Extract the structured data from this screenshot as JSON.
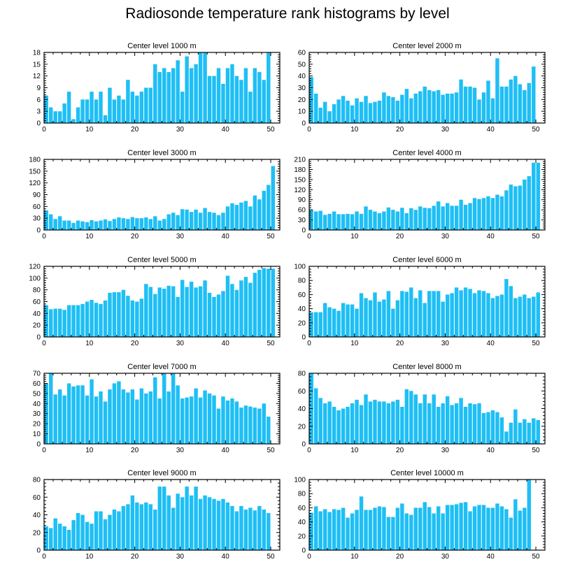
{
  "title": "Radiosonde temperature rank histograms by level",
  "colors": {
    "bar": "#1EBFF5",
    "axis": "#000000",
    "background": "#ffffff"
  },
  "chart_data": [
    {
      "type": "bar",
      "title": "Center level 1000 m",
      "x": [
        0,
        1,
        2,
        3,
        4,
        5,
        6,
        7,
        8,
        9,
        10,
        11,
        12,
        13,
        14,
        15,
        16,
        17,
        18,
        19,
        20,
        21,
        22,
        23,
        24,
        25,
        26,
        27,
        28,
        29,
        30,
        31,
        32,
        33,
        34,
        35,
        36,
        37,
        38,
        39,
        40,
        41,
        42,
        43,
        44,
        45,
        46,
        47,
        48,
        49,
        50,
        51
      ],
      "values": [
        7,
        4,
        3,
        3,
        5,
        8,
        1,
        4,
        6,
        6,
        8,
        6,
        8,
        2,
        9,
        6,
        7,
        6,
        11,
        8,
        7,
        8,
        9,
        9,
        15,
        13,
        14,
        13,
        14,
        16,
        8,
        17,
        14,
        15,
        18,
        18,
        12,
        12,
        14,
        10,
        14,
        15,
        12,
        11,
        14,
        8,
        14,
        13,
        11,
        18,
        0,
        0
      ],
      "xlim": [
        0,
        52
      ],
      "ylim": [
        0,
        18
      ],
      "xticks": [
        0,
        10,
        20,
        30,
        40,
        50
      ],
      "yticks": [
        0,
        3,
        6,
        9,
        12,
        15,
        18
      ]
    },
    {
      "type": "bar",
      "title": "Center level 2000 m",
      "x": [
        0,
        1,
        2,
        3,
        4,
        5,
        6,
        7,
        8,
        9,
        10,
        11,
        12,
        13,
        14,
        15,
        16,
        17,
        18,
        19,
        20,
        21,
        22,
        23,
        24,
        25,
        26,
        27,
        28,
        29,
        30,
        31,
        32,
        33,
        34,
        35,
        36,
        37,
        38,
        39,
        40,
        41,
        42,
        43,
        44,
        45,
        46,
        47,
        48,
        49,
        50,
        51
      ],
      "values": [
        39,
        25,
        13,
        18,
        10,
        16,
        20,
        23,
        19,
        15,
        21,
        18,
        23,
        17,
        18,
        19,
        26,
        23,
        22,
        19,
        24,
        29,
        21,
        25,
        27,
        31,
        28,
        27,
        28,
        24,
        25,
        25,
        26,
        37,
        31,
        31,
        30,
        20,
        26,
        36,
        21,
        55,
        31,
        31,
        37,
        40,
        33,
        28,
        34,
        48,
        0,
        0
      ],
      "xlim": [
        0,
        52
      ],
      "ylim": [
        0,
        60
      ],
      "xticks": [
        0,
        10,
        20,
        30,
        40,
        50
      ],
      "yticks": [
        0,
        10,
        20,
        30,
        40,
        50,
        60
      ]
    },
    {
      "type": "bar",
      "title": "Center level 3000 m",
      "x": [
        0,
        1,
        2,
        3,
        4,
        5,
        6,
        7,
        8,
        9,
        10,
        11,
        12,
        13,
        14,
        15,
        16,
        17,
        18,
        19,
        20,
        21,
        22,
        23,
        24,
        25,
        26,
        27,
        28,
        29,
        30,
        31,
        32,
        33,
        34,
        35,
        36,
        37,
        38,
        39,
        40,
        41,
        42,
        43,
        44,
        45,
        46,
        47,
        48,
        49,
        50,
        51
      ],
      "values": [
        50,
        40,
        28,
        35,
        24,
        24,
        18,
        24,
        22,
        20,
        25,
        22,
        24,
        27,
        23,
        28,
        32,
        30,
        28,
        33,
        30,
        30,
        32,
        28,
        35,
        24,
        28,
        40,
        44,
        38,
        53,
        52,
        46,
        52,
        44,
        56,
        46,
        44,
        38,
        44,
        60,
        68,
        64,
        70,
        74,
        60,
        88,
        78,
        100,
        115,
        163,
        0
      ],
      "xlim": [
        0,
        52
      ],
      "ylim": [
        0,
        180
      ],
      "xticks": [
        0,
        10,
        20,
        30,
        40,
        50
      ],
      "yticks": [
        0,
        30,
        60,
        90,
        120,
        150,
        180
      ]
    },
    {
      "type": "bar",
      "title": "Center level 4000 m",
      "x": [
        0,
        1,
        2,
        3,
        4,
        5,
        6,
        7,
        8,
        9,
        10,
        11,
        12,
        13,
        14,
        15,
        16,
        17,
        18,
        19,
        20,
        21,
        22,
        23,
        24,
        25,
        26,
        27,
        28,
        29,
        30,
        31,
        32,
        33,
        34,
        35,
        36,
        37,
        38,
        39,
        40,
        41,
        42,
        43,
        44,
        45,
        46,
        47,
        48,
        49,
        50,
        51
      ],
      "values": [
        60,
        55,
        57,
        45,
        48,
        55,
        47,
        47,
        48,
        47,
        55,
        48,
        70,
        60,
        55,
        50,
        55,
        67,
        60,
        55,
        66,
        50,
        65,
        60,
        70,
        66,
        65,
        72,
        85,
        70,
        80,
        72,
        72,
        90,
        75,
        80,
        95,
        92,
        95,
        100,
        95,
        105,
        100,
        118,
        135,
        130,
        132,
        150,
        160,
        200,
        200,
        0
      ],
      "xlim": [
        0,
        52
      ],
      "ylim": [
        0,
        210
      ],
      "xticks": [
        0,
        10,
        20,
        30,
        40,
        50
      ],
      "yticks": [
        0,
        30,
        60,
        90,
        120,
        150,
        180,
        210
      ]
    },
    {
      "type": "bar",
      "title": "Center level 5000 m",
      "x": [
        0,
        1,
        2,
        3,
        4,
        5,
        6,
        7,
        8,
        9,
        10,
        11,
        12,
        13,
        14,
        15,
        16,
        17,
        18,
        19,
        20,
        21,
        22,
        23,
        24,
        25,
        26,
        27,
        28,
        29,
        30,
        31,
        32,
        33,
        34,
        35,
        36,
        37,
        38,
        39,
        40,
        41,
        42,
        43,
        44,
        45,
        46,
        47,
        48,
        49,
        50,
        51
      ],
      "values": [
        54,
        47,
        48,
        48,
        46,
        54,
        54,
        54,
        56,
        60,
        63,
        58,
        56,
        62,
        75,
        76,
        76,
        80,
        70,
        62,
        60,
        65,
        90,
        85,
        73,
        84,
        82,
        87,
        86,
        68,
        97,
        85,
        94,
        84,
        86,
        96,
        75,
        68,
        72,
        78,
        104,
        90,
        80,
        96,
        102,
        92,
        109,
        114,
        117,
        116,
        116,
        0
      ],
      "xlim": [
        0,
        52
      ],
      "ylim": [
        0,
        120
      ],
      "xticks": [
        0,
        10,
        20,
        30,
        40,
        50
      ],
      "yticks": [
        0,
        20,
        40,
        60,
        80,
        100,
        120
      ]
    },
    {
      "type": "bar",
      "title": "Center level 6000 m",
      "x": [
        0,
        1,
        2,
        3,
        4,
        5,
        6,
        7,
        8,
        9,
        10,
        11,
        12,
        13,
        14,
        15,
        16,
        17,
        18,
        19,
        20,
        21,
        22,
        23,
        24,
        25,
        26,
        27,
        28,
        29,
        30,
        31,
        32,
        33,
        34,
        35,
        36,
        37,
        38,
        39,
        40,
        41,
        42,
        43,
        44,
        45,
        46,
        47,
        48,
        49,
        50,
        51
      ],
      "values": [
        35,
        35,
        35,
        48,
        42,
        40,
        37,
        48,
        46,
        46,
        40,
        62,
        55,
        52,
        63,
        50,
        53,
        65,
        40,
        52,
        65,
        64,
        70,
        55,
        66,
        48,
        65,
        65,
        65,
        50,
        60,
        62,
        70,
        66,
        70,
        68,
        62,
        66,
        65,
        62,
        55,
        58,
        60,
        82,
        72,
        55,
        57,
        60,
        55,
        57,
        63,
        0
      ],
      "xlim": [
        0,
        52
      ],
      "ylim": [
        0,
        100
      ],
      "xticks": [
        0,
        10,
        20,
        30,
        40,
        50
      ],
      "yticks": [
        0,
        20,
        40,
        60,
        80,
        100
      ]
    },
    {
      "type": "bar",
      "title": "Center level 7000 m",
      "x": [
        0,
        1,
        2,
        3,
        4,
        5,
        6,
        7,
        8,
        9,
        10,
        11,
        12,
        13,
        14,
        15,
        16,
        17,
        18,
        19,
        20,
        21,
        22,
        23,
        24,
        25,
        26,
        27,
        28,
        29,
        30,
        31,
        32,
        33,
        34,
        35,
        36,
        37,
        38,
        39,
        40,
        41,
        42,
        43,
        44,
        45,
        46,
        47,
        48,
        49,
        50,
        51
      ],
      "values": [
        60,
        70,
        49,
        54,
        48,
        60,
        57,
        58,
        58,
        48,
        64,
        47,
        52,
        42,
        54,
        60,
        62,
        54,
        51,
        54,
        44,
        55,
        50,
        52,
        66,
        45,
        70,
        52,
        70,
        58,
        45,
        46,
        47,
        55,
        46,
        53,
        50,
        48,
        35,
        47,
        43,
        45,
        42,
        36,
        38,
        37,
        36,
        35,
        40,
        27,
        0,
        0
      ],
      "xlim": [
        0,
        52
      ],
      "ylim": [
        0,
        70
      ],
      "xticks": [
        0,
        10,
        20,
        30,
        40,
        50
      ],
      "yticks": [
        0,
        10,
        20,
        30,
        40,
        50,
        60,
        70
      ]
    },
    {
      "type": "bar",
      "title": "Center level 8000 m",
      "x": [
        0,
        1,
        2,
        3,
        4,
        5,
        6,
        7,
        8,
        9,
        10,
        11,
        12,
        13,
        14,
        15,
        16,
        17,
        18,
        19,
        20,
        21,
        22,
        23,
        24,
        25,
        26,
        27,
        28,
        29,
        30,
        31,
        32,
        33,
        34,
        35,
        36,
        37,
        38,
        39,
        40,
        41,
        42,
        43,
        44,
        45,
        46,
        47,
        48,
        49,
        50,
        51
      ],
      "values": [
        80,
        63,
        52,
        46,
        48,
        42,
        38,
        40,
        42,
        46,
        50,
        44,
        56,
        48,
        50,
        48,
        48,
        46,
        48,
        50,
        42,
        62,
        60,
        56,
        46,
        56,
        46,
        56,
        42,
        46,
        54,
        44,
        46,
        52,
        42,
        46,
        45,
        46,
        35,
        36,
        38,
        36,
        30,
        14,
        24,
        39,
        24,
        28,
        24,
        29,
        27,
        0
      ],
      "xlim": [
        0,
        52
      ],
      "ylim": [
        0,
        80
      ],
      "xticks": [
        0,
        10,
        20,
        30,
        40,
        50
      ],
      "yticks": [
        0,
        20,
        40,
        60,
        80
      ]
    },
    {
      "type": "bar",
      "title": "Center level 9000 m",
      "x": [
        0,
        1,
        2,
        3,
        4,
        5,
        6,
        7,
        8,
        9,
        10,
        11,
        12,
        13,
        14,
        15,
        16,
        17,
        18,
        19,
        20,
        21,
        22,
        23,
        24,
        25,
        26,
        27,
        28,
        29,
        30,
        31,
        32,
        33,
        34,
        35,
        36,
        37,
        38,
        39,
        40,
        41,
        42,
        43,
        44,
        45,
        46,
        47,
        48,
        49,
        50,
        51
      ],
      "values": [
        27,
        25,
        36,
        30,
        27,
        23,
        34,
        42,
        40,
        32,
        30,
        44,
        44,
        35,
        40,
        46,
        44,
        50,
        52,
        62,
        54,
        52,
        54,
        52,
        46,
        72,
        72,
        62,
        48,
        64,
        60,
        72,
        62,
        72,
        58,
        62,
        60,
        58,
        56,
        58,
        54,
        50,
        44,
        50,
        46,
        48,
        45,
        50,
        46,
        42,
        0,
        0
      ],
      "xlim": [
        0,
        52
      ],
      "ylim": [
        0,
        80
      ],
      "xticks": [
        0,
        10,
        20,
        30,
        40,
        50
      ],
      "yticks": [
        0,
        20,
        40,
        60,
        80
      ]
    },
    {
      "type": "bar",
      "title": "Center level 10000 m",
      "x": [
        0,
        1,
        2,
        3,
        4,
        5,
        6,
        7,
        8,
        9,
        10,
        11,
        12,
        13,
        14,
        15,
        16,
        17,
        18,
        19,
        20,
        21,
        22,
        23,
        24,
        25,
        26,
        27,
        28,
        29,
        30,
        31,
        32,
        33,
        34,
        35,
        36,
        37,
        38,
        39,
        40,
        41,
        42,
        43,
        44,
        45,
        46,
        47,
        48,
        49,
        50,
        51
      ],
      "values": [
        53,
        62,
        55,
        58,
        54,
        58,
        57,
        60,
        46,
        52,
        57,
        76,
        57,
        57,
        60,
        62,
        61,
        47,
        47,
        60,
        66,
        52,
        50,
        60,
        60,
        68,
        61,
        52,
        62,
        52,
        64,
        64,
        65,
        67,
        68,
        55,
        62,
        64,
        64,
        60,
        60,
        66,
        62,
        58,
        46,
        72,
        56,
        60,
        100,
        0,
        0,
        0
      ],
      "xlim": [
        0,
        52
      ],
      "ylim": [
        0,
        100
      ],
      "xticks": [
        0,
        10,
        20,
        30,
        40,
        50
      ],
      "yticks": [
        0,
        20,
        40,
        60,
        80,
        100
      ]
    }
  ]
}
